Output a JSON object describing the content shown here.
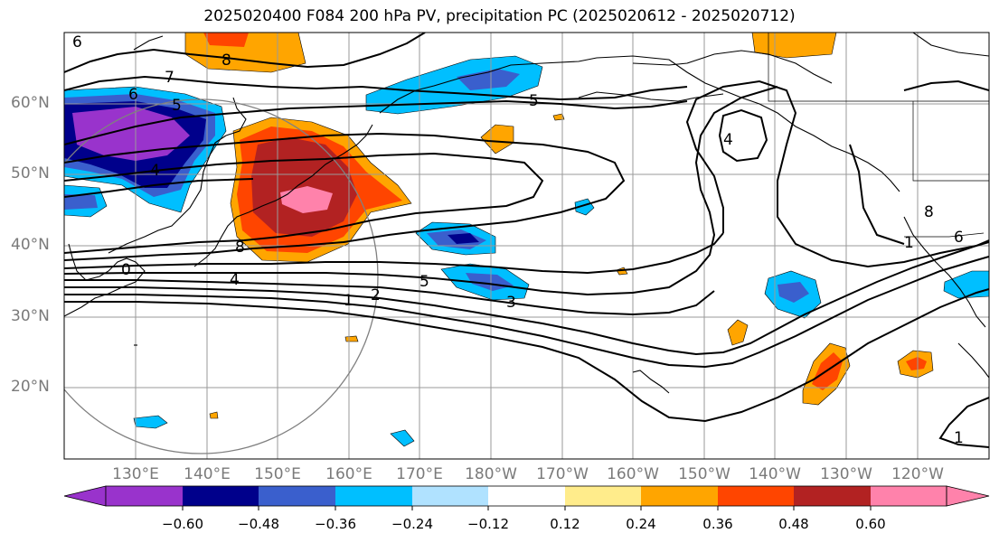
{
  "title": "2025020400 F084 200 hPa PV, precipitation PC (2025020612 - 2025020712)",
  "lat_labels": [
    "60°N",
    "50°N",
    "40°N",
    "30°N",
    "20°N"
  ],
  "lon_labels": [
    "130°E",
    "140°E",
    "150°E",
    "160°E",
    "170°E",
    "180°W",
    "170°W",
    "160°W",
    "150°W",
    "140°W",
    "130°W",
    "120°W"
  ],
  "colorbar": {
    "ticks": [
      "−0.60",
      "−0.48",
      "−0.36",
      "−0.24",
      "−0.12",
      "0.12",
      "0.24",
      "0.36",
      "0.48",
      "0.60"
    ],
    "colors": [
      "#9933cc",
      "#00008b",
      "#3a5fcd",
      "#00bfff",
      "#b0e2ff",
      "#ffffff",
      "#ffec8b",
      "#ffa500",
      "#ff4500",
      "#b22222",
      "#ff82ab"
    ]
  },
  "contour_labels": [
    "6",
    "7",
    "8",
    "6",
    "5",
    "5",
    "4",
    "4",
    "0",
    "8",
    "4",
    "5",
    "1",
    "2",
    "3",
    "8",
    "1",
    "6",
    "1"
  ],
  "colors": {
    "grid": "#9a9a9a",
    "coast": "#000000",
    "contour": "#000000",
    "circle": "#808080"
  }
}
